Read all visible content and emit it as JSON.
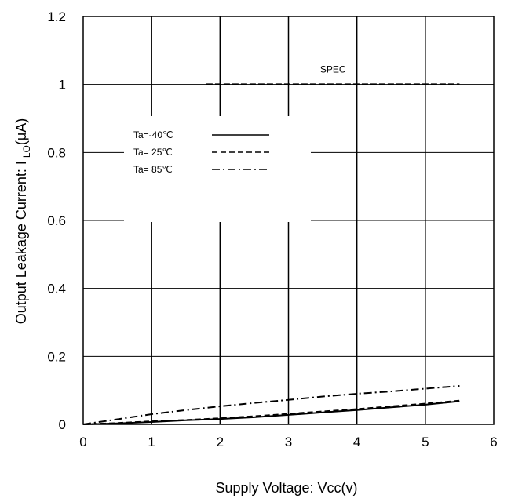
{
  "chart_data": {
    "type": "line",
    "xlabel": "Supply Voltage: Vcc(v)",
    "ylabel_main": "Output Leakage Current: I",
    "ylabel_sub": "LO",
    "ylabel_unit": "(μA)",
    "xlim": [
      0,
      6
    ],
    "ylim": [
      0,
      1.2
    ],
    "x_ticks": [
      0,
      1,
      2,
      3,
      4,
      5,
      6
    ],
    "x_tick_labels": [
      "0",
      "1",
      "2",
      "3",
      "4",
      "5",
      "6"
    ],
    "y_ticks": [
      0,
      0.2,
      0.4,
      0.6,
      0.8,
      1,
      1.2
    ],
    "y_tick_labels": [
      "0",
      "0.2",
      "0.4",
      "0.6",
      "0.8",
      "1",
      "1.2"
    ],
    "grid": true,
    "legend_placement": "upper-left",
    "spec": {
      "label": "SPEC",
      "value": 1.0,
      "x": [
        1.8,
        5.5
      ]
    },
    "series": [
      {
        "name": "Ta=-40℃",
        "style": "solid",
        "x": [
          0,
          0.5,
          1,
          1.5,
          2,
          2.5,
          3,
          3.5,
          4,
          4.5,
          5,
          5.5
        ],
        "y": [
          0,
          0.003,
          0.007,
          0.012,
          0.016,
          0.021,
          0.028,
          0.035,
          0.042,
          0.05,
          0.058,
          0.068
        ]
      },
      {
        "name": "Ta= 25℃",
        "style": "dashed",
        "x": [
          0,
          0.5,
          1,
          1.5,
          2,
          2.5,
          3,
          3.5,
          4,
          4.5,
          5,
          5.5
        ],
        "y": [
          0,
          0.004,
          0.009,
          0.013,
          0.018,
          0.024,
          0.031,
          0.038,
          0.045,
          0.053,
          0.061,
          0.07
        ]
      },
      {
        "name": "Ta= 85℃",
        "style": "dashdot",
        "x": [
          0,
          0.5,
          1,
          1.5,
          2,
          2.5,
          3,
          3.5,
          4,
          4.5,
          5,
          5.5
        ],
        "y": [
          0,
          0.015,
          0.03,
          0.042,
          0.053,
          0.063,
          0.072,
          0.082,
          0.09,
          0.097,
          0.105,
          0.113
        ]
      }
    ]
  }
}
